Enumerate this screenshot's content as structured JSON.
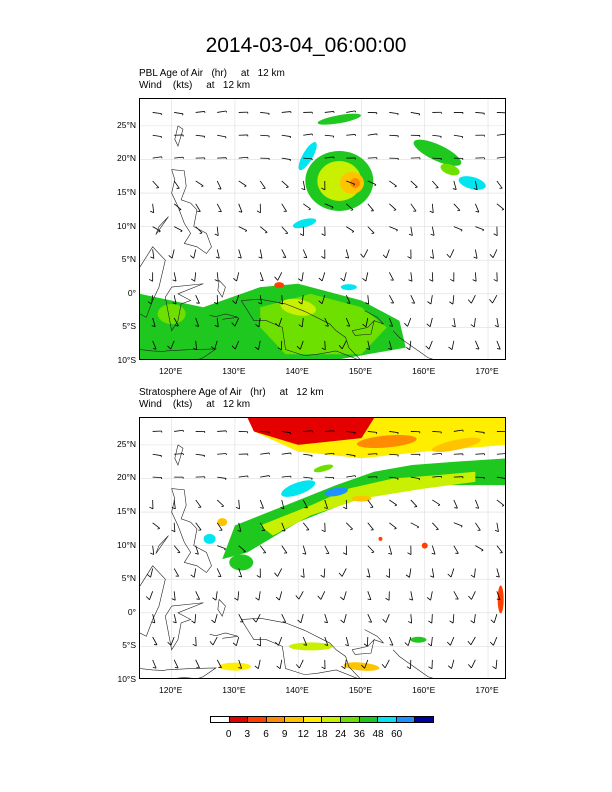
{
  "title": "2014-03-04_06:00:00",
  "panels": [
    {
      "caption_line1": "PBL Age of Air   (hr)     at   12 km",
      "caption_line2": "Wind    (kts)     at   12 km",
      "field": "pbl"
    },
    {
      "caption_line1": "Stratosphere Age of Air   (hr)     at   12 km",
      "caption_line2": "Wind    (kts)     at   12 km",
      "field": "strat"
    }
  ],
  "lat_ticks": [
    "25°N",
    "20°N",
    "15°N",
    "10°N",
    "5°N",
    "0°",
    "5°S",
    "10°S"
  ],
  "lon_ticks": [
    "120°E",
    "130°E",
    "140°E",
    "150°E",
    "160°E",
    "170°E"
  ],
  "colorbar": {
    "labels": [
      "0",
      "3",
      "6",
      "9",
      "12",
      "18",
      "24",
      "36",
      "48",
      "60"
    ],
    "colors": [
      "#ffffff",
      "#e50000",
      "#ff4000",
      "#ff8c00",
      "#ffc400",
      "#ffee00",
      "#c8f000",
      "#6ee000",
      "#1ec81e",
      "#00e5f0",
      "#1e90ff",
      "#0000a0"
    ]
  }
}
